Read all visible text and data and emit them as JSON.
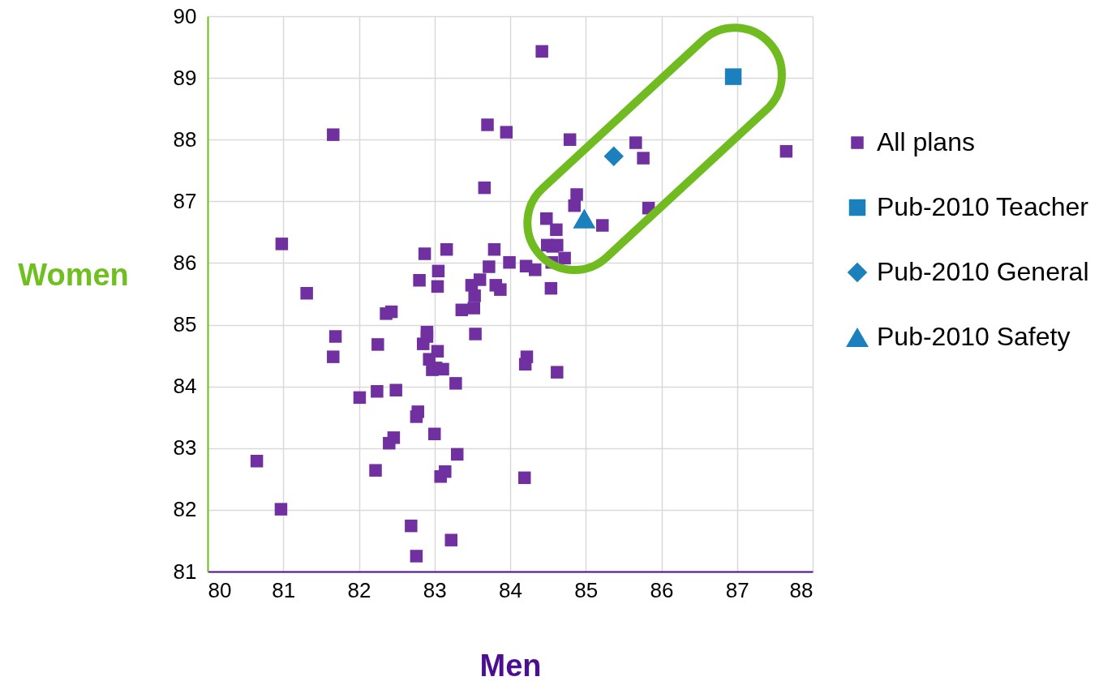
{
  "chart_data": {
    "type": "scatter",
    "xlabel": "Men",
    "ylabel": "Women",
    "xlim": [
      80,
      88
    ],
    "ylim": [
      81,
      90
    ],
    "xticks": [
      80,
      81,
      82,
      83,
      84,
      85,
      86,
      87,
      88
    ],
    "yticks": [
      81,
      82,
      83,
      84,
      85,
      86,
      87,
      88,
      89,
      90
    ],
    "grid": true,
    "legend": "right",
    "series": [
      {
        "name": "All plans",
        "color": "#7030a0",
        "marker": "square",
        "x": [
          80.98,
          80.65,
          80.97,
          81.31,
          81.66,
          81.69,
          81.66,
          82.01,
          82.22,
          82.24,
          82.25,
          82.36,
          82.43,
          82.4,
          82.46,
          82.49,
          82.8,
          82.87,
          82.69,
          82.76,
          82.76,
          82.78,
          82.85,
          82.9,
          82.9,
          82.93,
          82.97,
          83.0,
          83.04,
          83.02,
          83.05,
          83.04,
          83.11,
          83.08,
          83.14,
          83.16,
          83.22,
          83.28,
          83.3,
          83.36,
          83.49,
          83.53,
          83.52,
          83.54,
          83.6,
          83.66,
          83.7,
          83.72,
          83.79,
          83.81,
          83.87,
          83.95,
          83.99,
          84.19,
          84.2,
          84.22,
          84.21,
          84.33,
          84.42,
          84.48,
          84.49,
          84.56,
          84.54,
          84.55,
          84.61,
          84.62,
          84.62,
          84.72,
          84.79,
          84.85,
          84.88,
          85.22,
          85.66,
          85.76,
          85.83,
          87.65
        ],
        "values": [
          86.31,
          82.79,
          82.01,
          85.51,
          88.08,
          84.81,
          84.48,
          83.82,
          82.64,
          83.92,
          84.68,
          85.18,
          85.21,
          83.08,
          83.17,
          83.94,
          85.72,
          86.15,
          81.74,
          81.25,
          83.51,
          83.59,
          84.69,
          84.88,
          84.81,
          84.44,
          84.27,
          83.23,
          84.57,
          84.3,
          85.87,
          85.62,
          84.28,
          82.54,
          82.62,
          86.22,
          81.51,
          84.05,
          82.9,
          85.24,
          85.64,
          85.47,
          85.27,
          84.85,
          85.73,
          87.22,
          88.24,
          85.94,
          86.22,
          85.64,
          85.57,
          88.12,
          86.01,
          82.52,
          84.36,
          84.48,
          85.95,
          85.89,
          89.43,
          86.72,
          86.29,
          86.27,
          85.59,
          86.01,
          86.54,
          86.29,
          84.23,
          86.08,
          88.0,
          86.93,
          87.11,
          86.61,
          87.95,
          87.7,
          86.89,
          87.81
        ]
      },
      {
        "name": "Pub-2010 Teacher",
        "color": "#1b80bc",
        "marker": "square",
        "x": [
          86.95
        ],
        "values": [
          89.02
        ]
      },
      {
        "name": "Pub-2010 General",
        "color": "#1b80bc",
        "marker": "diamond",
        "x": [
          85.37
        ],
        "values": [
          87.73
        ]
      },
      {
        "name": "Pub-2010 Safety",
        "color": "#1b80bc",
        "marker": "triangle",
        "x": [
          84.98
        ],
        "values": [
          86.72
        ]
      }
    ]
  }
}
